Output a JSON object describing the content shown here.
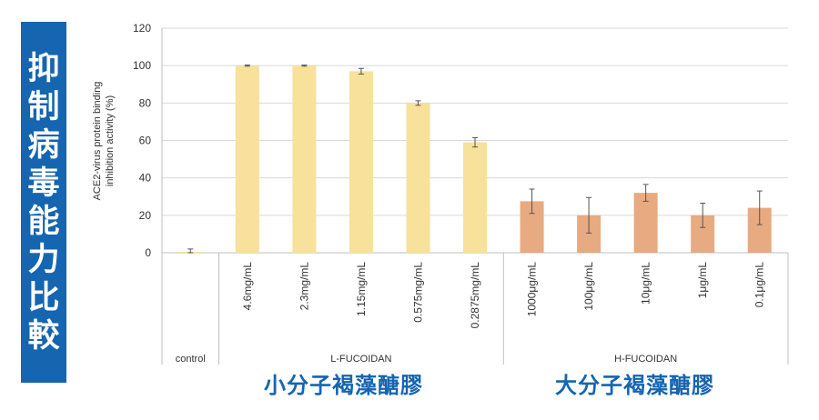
{
  "side_banner": {
    "chars": [
      "抑",
      "制",
      "病",
      "毒",
      "能",
      "力",
      "比",
      "較"
    ]
  },
  "bottom_titles": {
    "left": "小分子褐藻醣膠",
    "right": "大分子褐藻醣膠"
  },
  "colors": {
    "banner": "#1565b0",
    "l_bar": "#f7e19b",
    "h_bar": "#e8aa80",
    "grid": "#d9d9d9",
    "axis": "#bfbfbf"
  },
  "chart_data": {
    "type": "bar",
    "ylabel_lines": [
      "ACE2-virus protein binding",
      "inhibition activity (%)"
    ],
    "ylim": [
      0,
      120
    ],
    "yticks": [
      0,
      20,
      40,
      60,
      80,
      100,
      120
    ],
    "grid": true,
    "categories": [
      "",
      "4.6mg/mL",
      "2.3mg/mL",
      "1.15mg/mL",
      "0.575mg/mL",
      "0.2875mg/mL",
      "1000μg/mL",
      "100μg/mL",
      "10μg/mL",
      "1μg/mL",
      "0.1μg/mL"
    ],
    "values": [
      0.5,
      100,
      100,
      97,
      80,
      59,
      27.5,
      20,
      32,
      20,
      24
    ],
    "errors": [
      1.5,
      0.3,
      0.3,
      1.5,
      1.2,
      2.5,
      6.5,
      9.5,
      4.5,
      6.5,
      9
    ],
    "bar_groups": [
      "control",
      "L",
      "L",
      "L",
      "L",
      "L",
      "H",
      "H",
      "H",
      "H",
      "H"
    ],
    "groups": [
      {
        "label": "control",
        "start": 0,
        "end": 0
      },
      {
        "label": "L-FUCOIDAN",
        "start": 1,
        "end": 5
      },
      {
        "label": "H-FUCOIDAN",
        "start": 6,
        "end": 10
      }
    ]
  }
}
